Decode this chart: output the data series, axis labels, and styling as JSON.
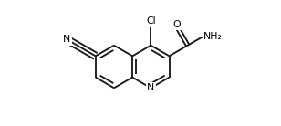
{
  "bg": "#ffffff",
  "bc": "#1a1a1a",
  "tc": "#000000",
  "lw": 1.35,
  "fs": 7.8,
  "bl": 0.145,
  "off": 0.026,
  "shrink": 0.02,
  "figsize": [
    3.08,
    1.38
  ],
  "dpi": 100,
  "xlim": [
    0.0,
    1.0
  ],
  "ylim": [
    0.1,
    0.95
  ]
}
